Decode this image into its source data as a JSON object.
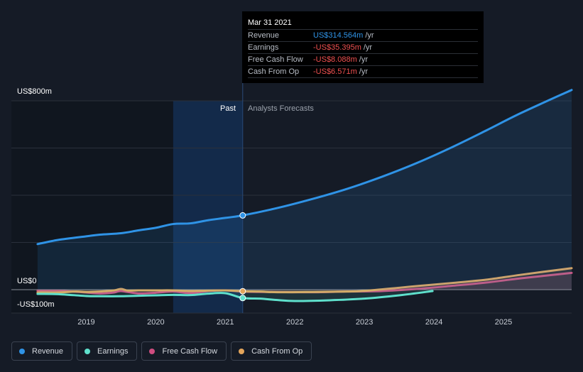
{
  "colors": {
    "revenue": "#2f93e6",
    "earnings": "#5fe0cc",
    "free_cash_flow": "#cf4d80",
    "cash_from_op": "#e3a55b",
    "background": "#151b26",
    "past_highlight": "#14325a"
  },
  "tooltip": {
    "date": "Mar 31 2021",
    "rows": [
      {
        "label": "Revenue",
        "value": "US$314.564m",
        "unit": "/yr",
        "color": "#2f93e6"
      },
      {
        "label": "Earnings",
        "value": "-US$35.395m",
        "unit": "/yr",
        "color": "#ef5050"
      },
      {
        "label": "Free Cash Flow",
        "value": "-US$8.088m",
        "unit": "/yr",
        "color": "#ef5050"
      },
      {
        "label": "Cash From Op",
        "value": "-US$6.571m",
        "unit": "/yr",
        "color": "#ef5050"
      }
    ]
  },
  "regions": {
    "past": "Past",
    "forecast": "Analysts Forecasts"
  },
  "legend": [
    {
      "label": "Revenue",
      "color": "#2f93e6"
    },
    {
      "label": "Earnings",
      "color": "#5fe0cc"
    },
    {
      "label": "Free Cash Flow",
      "color": "#cf4d80"
    },
    {
      "label": "Cash From Op",
      "color": "#e3a55b"
    }
  ],
  "chart_data": {
    "type": "line",
    "y_unit": "US$ m",
    "y_tick_labels": [
      "US$800m",
      "US$0",
      "-US$100m"
    ],
    "ylim": [
      -100,
      800
    ],
    "xlim": [
      2018.25,
      2025.98
    ],
    "x_ticks": [
      "2019",
      "2020",
      "2021",
      "2022",
      "2023",
      "2024",
      "2025"
    ],
    "past_region": [
      2020.25,
      2021.25
    ],
    "highlight_x": 2021.25,
    "grid": true,
    "legend_position": "bottom-left",
    "series": [
      {
        "name": "Revenue",
        "x": [
          2018.3,
          2018.6,
          2019.0,
          2019.2,
          2019.5,
          2019.75,
          2020.0,
          2020.25,
          2020.5,
          2020.75,
          2021.0,
          2021.25,
          2021.75,
          2022.25,
          2022.75,
          2023.25,
          2023.75,
          2024.25,
          2024.75,
          2025.25,
          2025.98
        ],
        "y": [
          193,
          211,
          226,
          233,
          239,
          251,
          262,
          278,
          281,
          294,
          304,
          314.6,
          346,
          384,
          427,
          478,
          536,
          602,
          674,
          748,
          846
        ]
      },
      {
        "name": "Earnings",
        "x": [
          2018.3,
          2018.6,
          2019.0,
          2019.2,
          2019.5,
          2019.75,
          2020.0,
          2020.25,
          2020.5,
          2020.75,
          2021.0,
          2021.25,
          2021.5,
          2021.75,
          2022.0,
          2022.5,
          2023.0,
          2023.5,
          2023.98
        ],
        "y": [
          -18,
          -19,
          -27,
          -28,
          -28,
          -26,
          -24,
          -22,
          -23,
          -17,
          -15,
          -35.4,
          -38,
          -44,
          -48,
          -45,
          -38,
          -24,
          -6
        ]
      },
      {
        "name": "Free Cash Flow",
        "x": [
          2018.3,
          2018.6,
          2018.85,
          2019.0,
          2019.2,
          2019.4,
          2019.5,
          2019.75,
          2020.0,
          2020.25,
          2020.5,
          2020.75,
          2021.0,
          2021.25,
          2021.75,
          2022.25,
          2022.75,
          2023.25,
          2023.75,
          2024.25,
          2024.75,
          2025.25,
          2025.98
        ],
        "y": [
          -5,
          -5,
          -9,
          -12,
          -16,
          -12,
          -6,
          -16,
          -13,
          -8,
          -15,
          -6,
          -3,
          -8.1,
          -10,
          -11,
          -8,
          -6,
          3,
          16,
          30,
          48,
          71
        ]
      },
      {
        "name": "Cash From Op",
        "x": [
          2018.3,
          2018.6,
          2018.85,
          2019.0,
          2019.2,
          2019.4,
          2019.5,
          2019.6,
          2019.75,
          2020.0,
          2020.25,
          2020.5,
          2020.75,
          2021.0,
          2021.25,
          2021.5,
          2021.75,
          2022.25,
          2022.75,
          2023.0,
          2023.5,
          2023.75,
          2024.25,
          2024.75,
          2025.25,
          2025.98
        ],
        "y": [
          -12,
          -12,
          -8,
          -10,
          -8,
          -3,
          3,
          -4,
          -3,
          -3,
          -3,
          -6,
          -4,
          -3,
          -6.6,
          -8,
          -11,
          -10,
          -8,
          -5,
          8,
          15,
          28,
          42,
          63,
          91
        ]
      }
    ]
  }
}
